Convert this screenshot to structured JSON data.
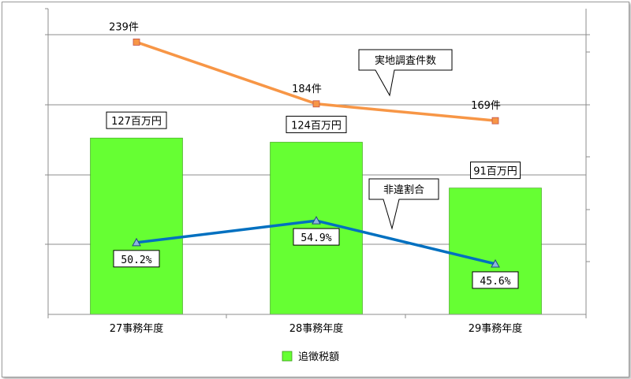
{
  "chart_data": {
    "type": "bar",
    "categories": [
      "27事務年度",
      "28事務年度",
      "29事務年度"
    ],
    "series": [
      {
        "name": "追徴税額",
        "kind": "bar",
        "values": [
          127,
          124,
          91
        ],
        "labels": [
          "127百万円",
          "124百万円",
          "91百万円"
        ],
        "color": "#66ff33"
      },
      {
        "name": "実地調査件数",
        "kind": "line",
        "values": [
          239,
          184,
          169
        ],
        "labels": [
          "239件",
          "184件",
          "169件"
        ],
        "color": "#f79646"
      },
      {
        "name": "非違割合",
        "kind": "line",
        "values": [
          50.2,
          54.9,
          45.6
        ],
        "labels": [
          "50.2%",
          "54.9%",
          "45.6%"
        ],
        "color": "#0070c0"
      }
    ],
    "callouts": [
      "実地調査件数",
      "非違割合"
    ],
    "legend": {
      "placement": "bottom",
      "entries": [
        "追徴税額"
      ]
    },
    "grid": true,
    "title": "",
    "xlabel": "",
    "ylabel": ""
  }
}
